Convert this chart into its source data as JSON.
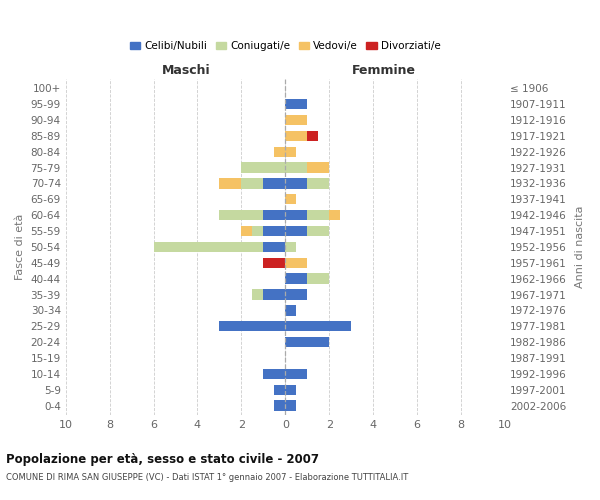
{
  "age_groups": [
    "0-4",
    "5-9",
    "10-14",
    "15-19",
    "20-24",
    "25-29",
    "30-34",
    "35-39",
    "40-44",
    "45-49",
    "50-54",
    "55-59",
    "60-64",
    "65-69",
    "70-74",
    "75-79",
    "80-84",
    "85-89",
    "90-94",
    "95-99",
    "100+"
  ],
  "birth_years": [
    "2002-2006",
    "1997-2001",
    "1992-1996",
    "1987-1991",
    "1982-1986",
    "1977-1981",
    "1972-1976",
    "1967-1971",
    "1962-1966",
    "1957-1961",
    "1952-1956",
    "1947-1951",
    "1942-1946",
    "1937-1941",
    "1932-1936",
    "1927-1931",
    "1922-1926",
    "1917-1921",
    "1912-1916",
    "1907-1911",
    "≤ 1906"
  ],
  "maschi": {
    "celibi": [
      0.5,
      0.5,
      1,
      0,
      0,
      3,
      0,
      1,
      0,
      0,
      1,
      1,
      1,
      0,
      1,
      0,
      0,
      0,
      0,
      0,
      0
    ],
    "coniugati": [
      0,
      0,
      0,
      0,
      0,
      0,
      0,
      0.5,
      0,
      0,
      5,
      0.5,
      2,
      0,
      1,
      2,
      0,
      0,
      0,
      0,
      0
    ],
    "vedovi": [
      0,
      0,
      0,
      0,
      0,
      0,
      0,
      0,
      0,
      0,
      0,
      0.5,
      0,
      0,
      1,
      0,
      0.5,
      0,
      0,
      0,
      0
    ],
    "divorziati": [
      0,
      0,
      0,
      0,
      0,
      0,
      0,
      0,
      0,
      1,
      0,
      0,
      0,
      0,
      0,
      0,
      0,
      0,
      0,
      0,
      0
    ]
  },
  "femmine": {
    "nubili": [
      0.5,
      0.5,
      1,
      0,
      2,
      3,
      0.5,
      1,
      1,
      0,
      0,
      1,
      1,
      0,
      1,
      0,
      0,
      0,
      0,
      1,
      0
    ],
    "coniugate": [
      0,
      0,
      0,
      0,
      0,
      0,
      0,
      0,
      1,
      0,
      0.5,
      1,
      1,
      0,
      1,
      1,
      0,
      0,
      0,
      0,
      0
    ],
    "vedove": [
      0,
      0,
      0,
      0,
      0,
      0,
      0,
      0,
      0,
      1,
      0,
      0,
      0.5,
      0.5,
      0,
      1,
      0.5,
      1,
      1,
      0,
      0
    ],
    "divorziate": [
      0,
      0,
      0,
      0,
      0,
      0,
      0,
      0,
      0,
      0,
      0,
      0,
      0,
      0,
      0,
      0,
      0,
      0.5,
      0,
      0,
      0
    ]
  },
  "colors": {
    "celibi": "#4472c4",
    "coniugati": "#c5d9a0",
    "vedovi": "#f5c264",
    "divorziati": "#cc2222"
  },
  "title": "Popolazione per età, sesso e stato civile - 2007",
  "subtitle": "COMUNE DI RIMA SAN GIUSEPPE (VC) - Dati ISTAT 1° gennaio 2007 - Elaborazione TUTTITALIA.IT",
  "xlabel_left": "Maschi",
  "xlabel_right": "Femmine",
  "ylabel_left": "Fasce di età",
  "ylabel_right": "Anni di nascita",
  "xlim": 10,
  "legend_labels": [
    "Celibi/Nubili",
    "Coniugati/e",
    "Vedovi/e",
    "Divorziati/e"
  ],
  "bg_color": "#ffffff"
}
